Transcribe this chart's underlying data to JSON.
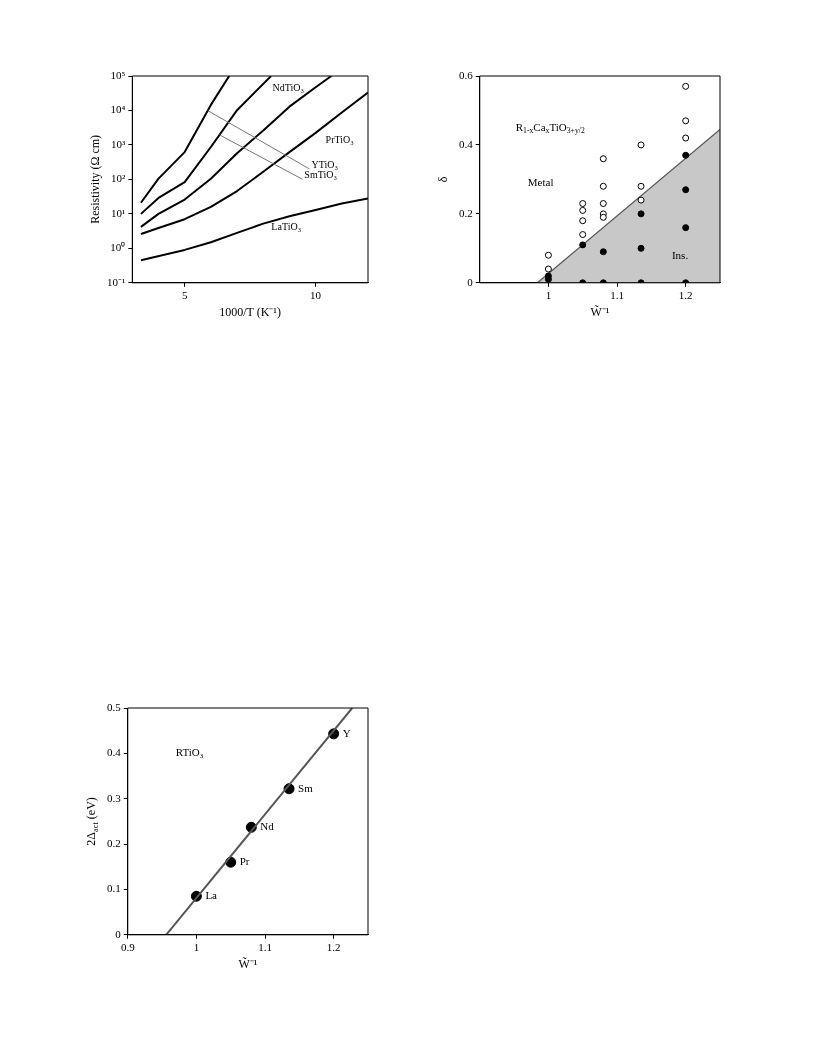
{
  "chart_data": [
    {
      "type": "line",
      "xlabel": "1000/T (K⁻¹)",
      "ylabel": "Resistivity (Ω cm)",
      "log": "y",
      "grid": false,
      "legend": false,
      "marker": "none",
      "line_style": "solid",
      "xlim": [
        3,
        12
      ],
      "xticks": [
        5,
        10
      ],
      "ylim": [
        0.1,
        100000
      ],
      "yticks": [
        {
          "value": 0.1,
          "label": "10⁻¹"
        },
        {
          "value": 1,
          "label": "10⁰"
        },
        {
          "value": 10,
          "label": "10¹"
        },
        {
          "value": 100,
          "label": "10²"
        },
        {
          "value": 1000,
          "label": "10³"
        },
        {
          "value": 10000,
          "label": "10⁴"
        },
        {
          "value": 100000,
          "label": "10⁵"
        }
      ],
      "series": [
        {
          "name": "LaTiO₃",
          "color": "#000000",
          "x": [
            3.33,
            5,
            6,
            7,
            8,
            9,
            10,
            11,
            12
          ],
          "values": [
            0.45,
            0.9,
            1.5,
            2.8,
            5.2,
            8.5,
            13,
            20,
            28
          ]
        },
        {
          "name": "PrTiO₃",
          "color": "#000000",
          "x": [
            3.33,
            4,
            5,
            6,
            7,
            8,
            9,
            10,
            11,
            12
          ],
          "values": [
            2.6,
            3.9,
            7,
            16,
            46,
            166,
            617,
            2240,
            8700,
            33000
          ]
        },
        {
          "name": "NdTiO₃",
          "color": "#000000",
          "x": [
            3.33,
            4,
            5,
            6,
            7,
            8,
            9,
            10,
            10.6
          ],
          "values": [
            4.2,
            10,
            26,
            105,
            575,
            2630,
            12900,
            47000,
            100000
          ]
        },
        {
          "name": "SmTiO₃",
          "color": "#000000",
          "x": [
            3.33,
            4,
            5,
            6,
            7,
            8.3
          ],
          "values": [
            10,
            29,
            83,
            870,
            10200,
            100000
          ]
        },
        {
          "name": "YTiO₃",
          "color": "#000000",
          "x": [
            3.33,
            4,
            5,
            6,
            6.7
          ],
          "values": [
            21,
            105,
            620,
            14500,
            100000
          ]
        }
      ]
    },
    {
      "type": "scatter",
      "xlabel": "W̃⁻¹",
      "ylabel": "δ",
      "grid": false,
      "legend": false,
      "xlim": [
        0.9,
        1.25
      ],
      "xticks": [
        1,
        1.1,
        1.2
      ],
      "ylim": [
        0,
        0.6
      ],
      "yticks": [
        0,
        0.2,
        0.4,
        0.6
      ],
      "series": [
        {
          "type": "area",
          "color": "#c8c8c8",
          "x": [
            0.984,
            1.25
          ],
          "values": [
            0,
            0.445
          ]
        },
        {
          "type": "scatter",
          "marker": "circle",
          "color": "#ffffff",
          "x": [
            1,
            1,
            1.05,
            1.05,
            1.05,
            1.05,
            1.08,
            1.08,
            1.08,
            1.08,
            1.08,
            1.135,
            1.135,
            1.135,
            1.2,
            1.2,
            1.2
          ],
          "values": [
            0.08,
            0.04,
            0.23,
            0.21,
            0.18,
            0.14,
            0.36,
            0.28,
            0.23,
            0.2,
            0.19,
            0.4,
            0.28,
            0.24,
            0.57,
            0.47,
            0.42
          ]
        },
        {
          "type": "scatter",
          "marker": "circle",
          "color": "#000000",
          "x": [
            1,
            1,
            1.05,
            1.05,
            1.08,
            1.08,
            1.135,
            1.135,
            1.135,
            1.2,
            1.2,
            1.2,
            1.2
          ],
          "values": [
            0.02,
            0.01,
            0.11,
            0,
            0.09,
            0,
            0.2,
            0.1,
            0,
            0.37,
            0.27,
            0.16,
            0
          ]
        }
      ],
      "annotations": [
        "R$_{1-x}$Ca$_{x}$TiO$_{3+y/2}$",
        "Metal",
        "Ins."
      ]
    },
    {
      "type": "scatter",
      "xlabel": "W̃⁻¹",
      "ylabel": "2Δ$_{act}$ (eV)",
      "grid": false,
      "legend": false,
      "xlim": [
        0.9,
        1.25
      ],
      "xticks": [
        0.9,
        1,
        1.1,
        1.2
      ],
      "ylim": [
        0,
        0.5
      ],
      "yticks": [
        0,
        0.1,
        0.2,
        0.3,
        0.4,
        0.5
      ],
      "series": [
        {
          "type": "line",
          "color": "#555555",
          "x": [
            0.956,
            1.227
          ],
          "values": [
            0,
            0.5
          ]
        },
        {
          "type": "scatter",
          "marker": "circle",
          "color": "#000000",
          "x": [
            1,
            1.05,
            1.08,
            1.135,
            1.2
          ],
          "values": [
            0.085,
            0.16,
            0.237,
            0.322,
            0.443
          ]
        }
      ],
      "annotations": [
        "RTiO₃",
        {
          "text": "La",
          "x": 1,
          "y": 0.085
        },
        {
          "text": "Pr",
          "x": 1.05,
          "y": 0.16
        },
        {
          "text": "Nd",
          "x": 1.08,
          "y": 0.237
        },
        {
          "text": "Sm",
          "x": 1.135,
          "y": 0.322
        },
        {
          "text": "Y",
          "x": 1.2,
          "y": 0.443
        }
      ]
    }
  ]
}
